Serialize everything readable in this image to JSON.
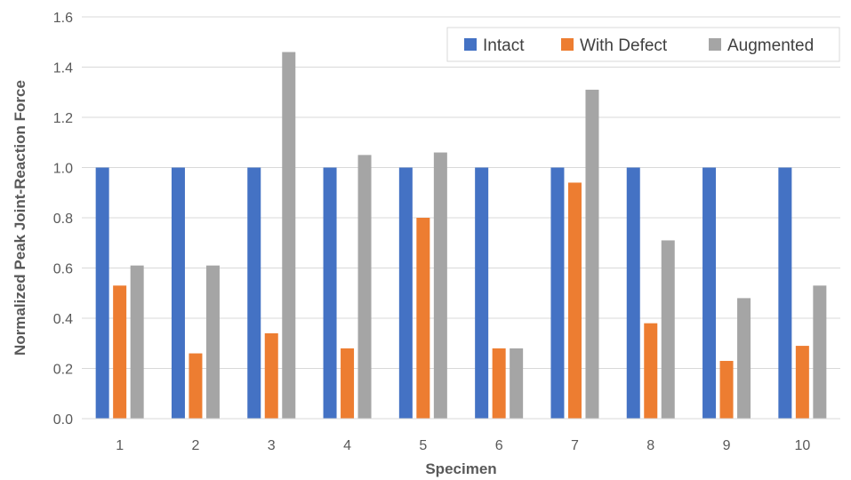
{
  "chart_data": {
    "type": "bar",
    "xlabel": "Specimen",
    "ylabel": "Normalized Peak Joint-Reaction Force",
    "categories": [
      "1",
      "2",
      "3",
      "4",
      "5",
      "6",
      "7",
      "8",
      "9",
      "10"
    ],
    "ylim": [
      0,
      1.6
    ],
    "yticks": [
      "0.0",
      "0.2",
      "0.4",
      "0.6",
      "0.8",
      "1.0",
      "1.2",
      "1.4",
      "1.6"
    ],
    "grid": true,
    "legend_position": "top-right",
    "series": [
      {
        "name": "Intact",
        "color": "#4472C4",
        "values": [
          1.0,
          1.0,
          1.0,
          1.0,
          1.0,
          1.0,
          1.0,
          1.0,
          1.0,
          1.0
        ]
      },
      {
        "name": "With Defect",
        "color": "#ED7D31",
        "values": [
          0.53,
          0.26,
          0.34,
          0.28,
          0.8,
          0.28,
          0.94,
          0.38,
          0.23,
          0.29
        ]
      },
      {
        "name": "Augmented",
        "color": "#A5A5A5",
        "values": [
          0.61,
          0.61,
          1.46,
          1.05,
          1.06,
          0.28,
          1.31,
          0.71,
          0.48,
          0.53
        ]
      }
    ]
  }
}
